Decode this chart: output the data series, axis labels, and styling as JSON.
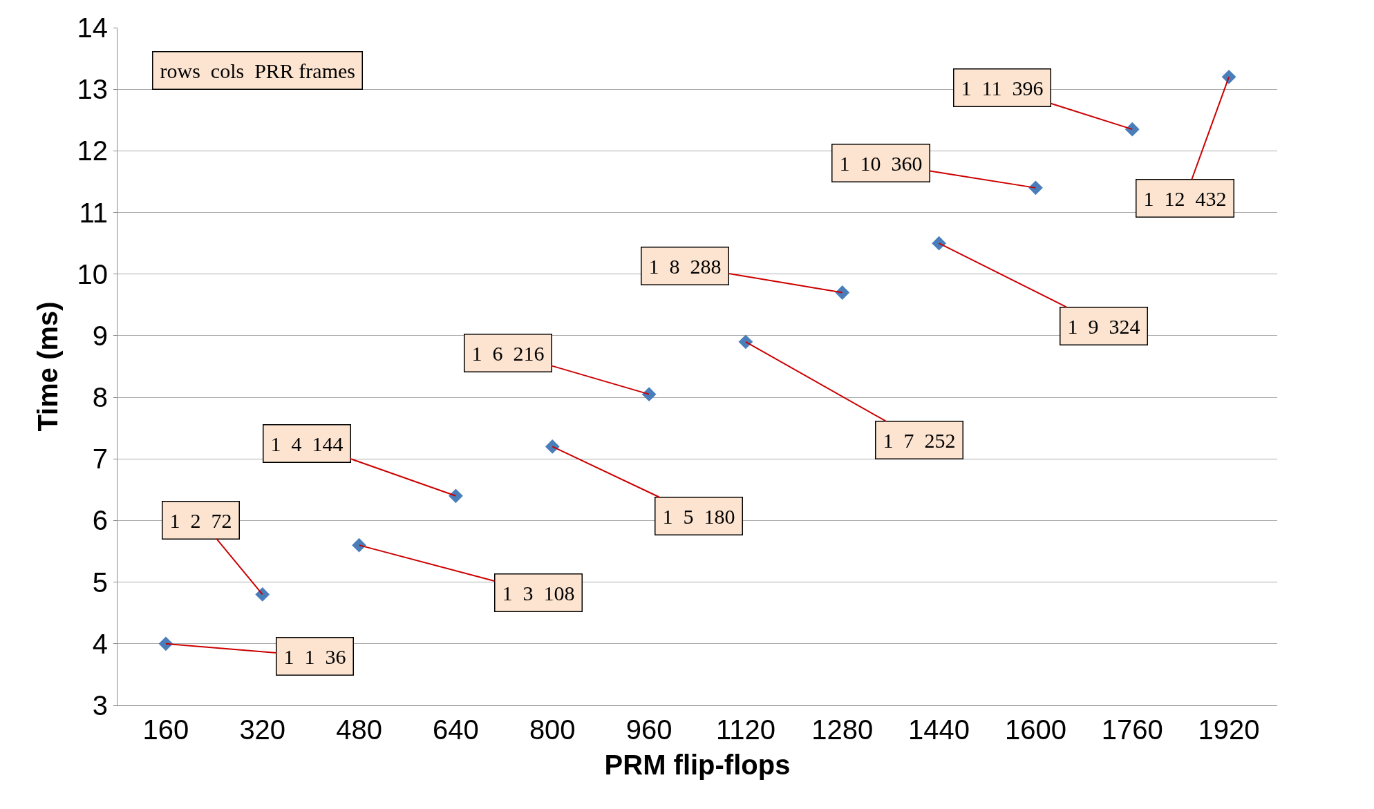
{
  "chart_data": {
    "type": "scatter",
    "xlabel": "PRM flip-flops",
    "ylabel": "Time (ms)",
    "categories": [
      "160",
      "320",
      "480",
      "640",
      "800",
      "960",
      "1120",
      "1280",
      "1440",
      "1600",
      "1760",
      "1920"
    ],
    "values": [
      4.0,
      4.8,
      5.6,
      6.4,
      7.2,
      8.05,
      8.9,
      9.7,
      10.5,
      11.4,
      12.35,
      13.2
    ],
    "color": "#4a7ebb",
    "marker": "diamond",
    "grid": "y",
    "ylim": [
      3,
      14
    ],
    "yticks": [
      3,
      4,
      5,
      6,
      7,
      8,
      9,
      10,
      11,
      12,
      13,
      14
    ],
    "annotations": [
      "rows  cols  PRR frames",
      {
        "text": "1  1  36",
        "x": "160",
        "y": 4.0
      },
      {
        "text": "1  2  72",
        "x": "320",
        "y": 4.8
      },
      {
        "text": "1  3  108",
        "x": "480",
        "y": 5.6
      },
      {
        "text": "1  4  144",
        "x": "640",
        "y": 6.4
      },
      {
        "text": "1  5  180",
        "x": "800",
        "y": 7.2
      },
      {
        "text": "1  6  216",
        "x": "960",
        "y": 8.05
      },
      {
        "text": "1  7  252",
        "x": "1120",
        "y": 8.9
      },
      {
        "text": "1  8  288",
        "x": "1280",
        "y": 9.7
      },
      {
        "text": "1  9  324",
        "x": "1440",
        "y": 10.5
      },
      {
        "text": "1  10  360",
        "x": "1600",
        "y": 11.4
      },
      {
        "text": "1  11  396",
        "x": "1760",
        "y": 12.35
      },
      {
        "text": "1  12  432",
        "x": "1920",
        "y": 13.2
      }
    ]
  }
}
